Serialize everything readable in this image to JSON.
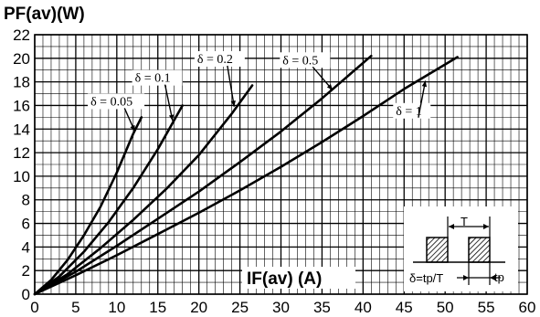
{
  "chart_data": {
    "type": "line",
    "ylabel": "PF(av)(W)",
    "xlabel": "IF(av) (A)",
    "xlim": [
      0,
      60
    ],
    "ylim": [
      0,
      22
    ],
    "xticks": [
      0,
      5,
      10,
      15,
      20,
      25,
      30,
      35,
      40,
      45,
      50,
      55,
      60
    ],
    "yticks": [
      0,
      2,
      4,
      6,
      8,
      10,
      12,
      14,
      16,
      18,
      20,
      22
    ],
    "grid": true,
    "series": [
      {
        "name": "δ = 0.05",
        "x": [
          0,
          2,
          4,
          6,
          8,
          10,
          12,
          13
        ],
        "y": [
          0,
          1.2,
          2.9,
          5.0,
          7.4,
          10.3,
          13.6,
          15.0
        ]
      },
      {
        "name": "δ = 0.1",
        "x": [
          0,
          3,
          6,
          9,
          12,
          15,
          18
        ],
        "y": [
          0,
          1.5,
          3.6,
          6.1,
          9.0,
          12.3,
          16.0
        ]
      },
      {
        "name": "δ = 0.2",
        "x": [
          0,
          4,
          8,
          12,
          16,
          20,
          24,
          26.5
        ],
        "y": [
          0,
          1.7,
          3.9,
          6.3,
          8.9,
          11.8,
          15.3,
          17.7
        ]
      },
      {
        "name": "δ = 0.5",
        "x": [
          0,
          5,
          10,
          15,
          20,
          25,
          30,
          35,
          41
        ],
        "y": [
          0,
          1.9,
          4.1,
          6.4,
          8.7,
          11.2,
          13.8,
          16.6,
          20.2
        ]
      },
      {
        "name": "δ = 1",
        "x": [
          0,
          5,
          10,
          15,
          20,
          25,
          30,
          35,
          40,
          45,
          51.5
        ],
        "y": [
          0,
          1.6,
          3.3,
          5.1,
          6.9,
          8.8,
          10.8,
          12.9,
          15.1,
          17.4,
          20.1
        ]
      }
    ]
  },
  "inset": {
    "period_label": "T",
    "pulse_label": "tp",
    "formula_label": "δ=tp/T"
  }
}
